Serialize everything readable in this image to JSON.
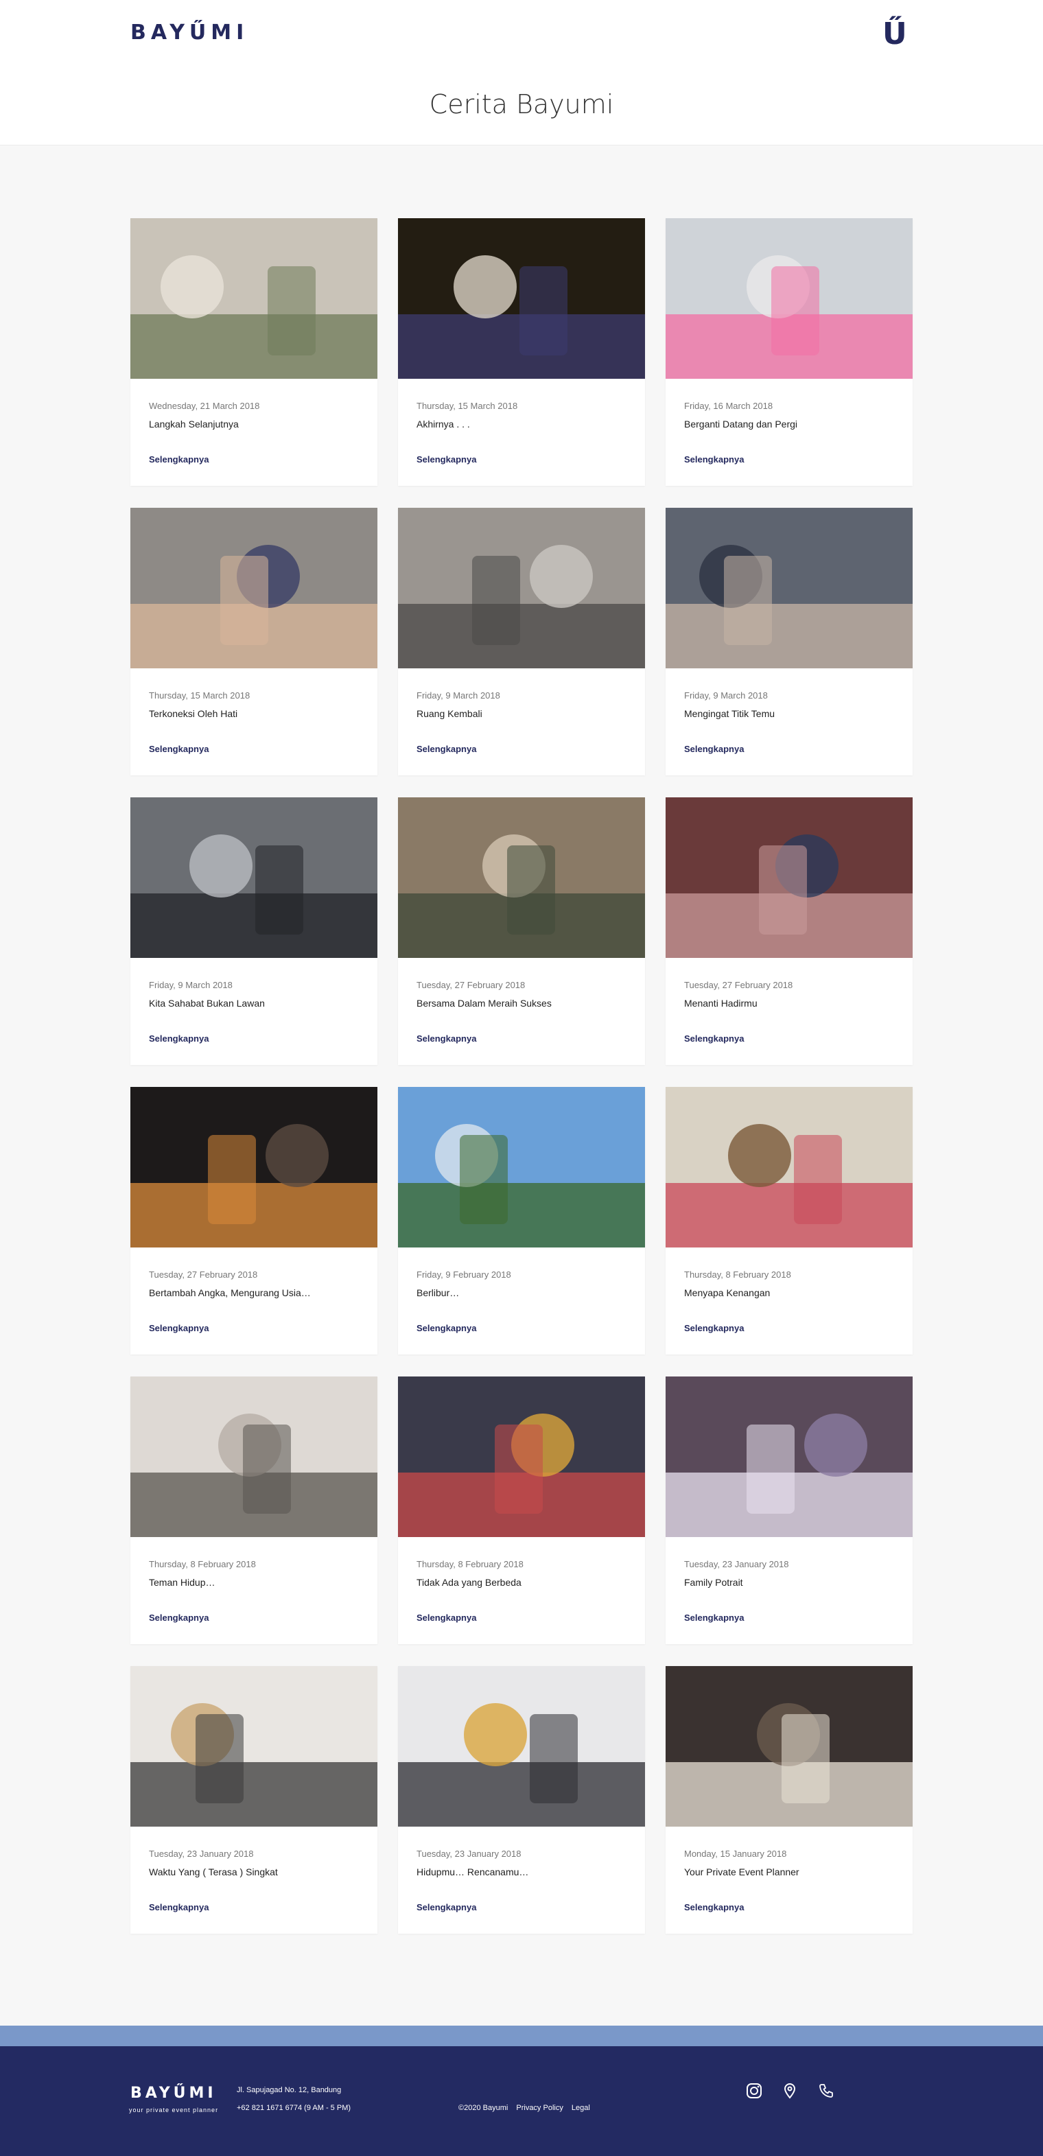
{
  "header": {
    "logo": "BAYŰMI",
    "logo_mark": "Ű",
    "title": "Cerita Bayumi"
  },
  "stories": [
    {
      "date": "Wednesday, 21 March 2018",
      "title": "Langkah Selanjutnya",
      "link": "Selengkapnya"
    },
    {
      "date": "Thursday, 15 March 2018",
      "title": "Akhirnya . . .",
      "link": "Selengkapnya"
    },
    {
      "date": "Friday, 16 March 2018",
      "title": "Berganti Datang dan Pergi",
      "link": "Selengkapnya"
    },
    {
      "date": "Thursday, 15 March 2018",
      "title": "Terkoneksi Oleh Hati",
      "link": "Selengkapnya"
    },
    {
      "date": "Friday, 9 March 2018",
      "title": "Ruang Kembali",
      "link": "Selengkapnya"
    },
    {
      "date": "Friday, 9 March 2018",
      "title": "Mengingat Titik Temu",
      "link": "Selengkapnya"
    },
    {
      "date": "Friday, 9 March 2018",
      "title": "Kita Sahabat Bukan Lawan",
      "link": "Selengkapnya"
    },
    {
      "date": "Tuesday, 27 February 2018",
      "title": "Bersama Dalam Meraih Sukses",
      "link": "Selengkapnya"
    },
    {
      "date": "Tuesday, 27 February 2018",
      "title": "Menanti Hadirmu",
      "link": "Selengkapnya"
    },
    {
      "date": "Tuesday, 27 February 2018",
      "title": "Bertambah Angka, Mengurang Usia…",
      "link": "Selengkapnya"
    },
    {
      "date": "Friday, 9 February 2018",
      "title": "Berlibur…",
      "link": "Selengkapnya"
    },
    {
      "date": "Thursday, 8 February 2018",
      "title": "Menyapa Kenangan",
      "link": "Selengkapnya"
    },
    {
      "date": "Thursday, 8 February 2018",
      "title": "Teman Hidup…",
      "link": "Selengkapnya"
    },
    {
      "date": "Thursday, 8 February 2018",
      "title": "Tidak Ada yang Berbeda",
      "link": "Selengkapnya"
    },
    {
      "date": "Tuesday, 23 January 2018",
      "title": "Family Potrait",
      "link": "Selengkapnya"
    },
    {
      "date": "Tuesday, 23 January 2018",
      "title": "Waktu Yang ( Terasa ) Singkat",
      "link": "Selengkapnya"
    },
    {
      "date": "Tuesday, 23 January 2018",
      "title": "Hidupmu… Rencanamu…",
      "link": "Selengkapnya"
    },
    {
      "date": "Monday, 15 January 2018",
      "title": "Your Private Event Planner",
      "link": "Selengkapnya"
    }
  ],
  "footer": {
    "logo": "BAYŰMI",
    "tagline": "your private event planner",
    "address": "Jl. Sapujagad No. 12, Bandung",
    "phone": "+62 821 1671 6774 (9 AM - 5 PM)",
    "copyright": "©2020 Bayumi",
    "privacy": "Privacy Policy",
    "legal": "Legal",
    "icons": [
      "instagram-icon",
      "location-pin-icon",
      "phone-icon"
    ]
  },
  "colors": {
    "brand": "#24295e",
    "footer_stripe": "#7a98c9",
    "footer": "#232a62"
  }
}
